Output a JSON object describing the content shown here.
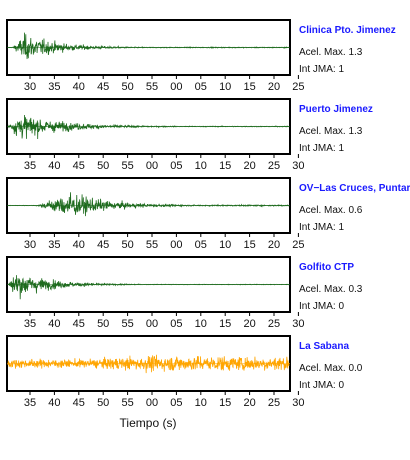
{
  "colors": {
    "station_name": "#1a1aff",
    "trace_green": "#1e6b1e",
    "trace_orange": "#ffa500",
    "frame": "#000000"
  },
  "chart_data": {
    "type": "line",
    "xlabel": "Tiempo (s)",
    "panels": [
      {
        "station": "Clinica Pto. Jimenez",
        "accel_label": "Acel. Max. 1.3",
        "int_label": "Int JMA: 1",
        "ticks": [
          "30",
          "35",
          "40",
          "45",
          "50",
          "55",
          "00",
          "05",
          "10",
          "15",
          "20",
          "25"
        ],
        "color": "#1e6b1e",
        "onset": 0.015,
        "peak_at": 0.06,
        "amplitude": 0.95,
        "decay": 0.12,
        "tail": 0.03
      },
      {
        "station": "Puerto Jimenez",
        "accel_label": "Acel. Max. 1.3",
        "int_label": "Int JMA: 1",
        "ticks": [
          "35",
          "40",
          "45",
          "50",
          "55",
          "00",
          "05",
          "10",
          "15",
          "20",
          "25",
          "30"
        ],
        "color": "#1e6b1e",
        "onset": 0.0,
        "peak_at": 0.04,
        "amplitude": 0.9,
        "decay": 0.16,
        "tail": 0.03
      },
      {
        "station": "OV−Las Cruces, Puntar",
        "accel_label": "Acel. Max. 0.6",
        "int_label": "Int JMA: 1",
        "ticks": [
          "30",
          "35",
          "40",
          "45",
          "50",
          "55",
          "00",
          "05",
          "10",
          "15",
          "20",
          "25"
        ],
        "color": "#1e6b1e",
        "onset": 0.1,
        "peak_at": 0.22,
        "amplitude": 0.9,
        "decay": 0.14,
        "tail": 0.05
      },
      {
        "station": "Golfito CTP",
        "accel_label": "Acel. Max. 0.3",
        "int_label": "Int JMA: 0",
        "ticks": [
          "35",
          "40",
          "45",
          "50",
          "55",
          "00",
          "05",
          "10",
          "15",
          "20",
          "25",
          "30"
        ],
        "color": "#1e6b1e",
        "onset": 0.0,
        "peak_at": 0.03,
        "amplitude": 0.95,
        "decay": 0.12,
        "tail": 0.02
      },
      {
        "station": "La Sabana",
        "accel_label": "Acel. Max. 0.0",
        "int_label": "Int JMA: 0",
        "ticks": [
          "35",
          "40",
          "45",
          "50",
          "55",
          "00",
          "05",
          "10",
          "15",
          "20",
          "25",
          "30"
        ],
        "color": "#ffa500",
        "onset": 0.0,
        "peak_at": 0.5,
        "amplitude": 0.55,
        "decay": 10,
        "tail": 0.55
      }
    ]
  }
}
